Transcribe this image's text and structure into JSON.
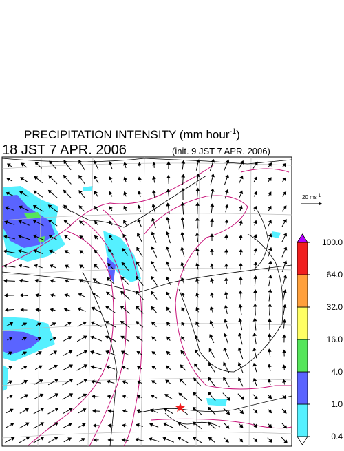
{
  "header": {
    "title": {
      "main": "PRECIPITATION INTENSITY (mm hour",
      "sup": "-1",
      "end": ")"
    },
    "valid_time": "18 JST 7 APR. 2006",
    "init_time": "(init. 9 JST 7 APR. 2006)"
  },
  "wind_scale": {
    "label": "20 ms",
    "sup": "-1"
  },
  "colorbar": {
    "levels": [
      {
        "value": 0.4,
        "label": "0.4"
      },
      {
        "value": 1,
        "label": "1.0"
      },
      {
        "value": 4,
        "label": "4.0"
      },
      {
        "value": 16,
        "label": "16.0"
      },
      {
        "value": 32,
        "label": "32.0"
      },
      {
        "value": 64,
        "label": "64.0"
      },
      {
        "value": 100,
        "label": "100.0"
      }
    ],
    "colors": [
      "#55f0ff",
      "#5a64ff",
      "#55e65a",
      "#ffff64",
      "#ffa03c",
      "#f01e1e"
    ],
    "under_color": "#ffffff",
    "over_color": "#b400ff"
  }
}
